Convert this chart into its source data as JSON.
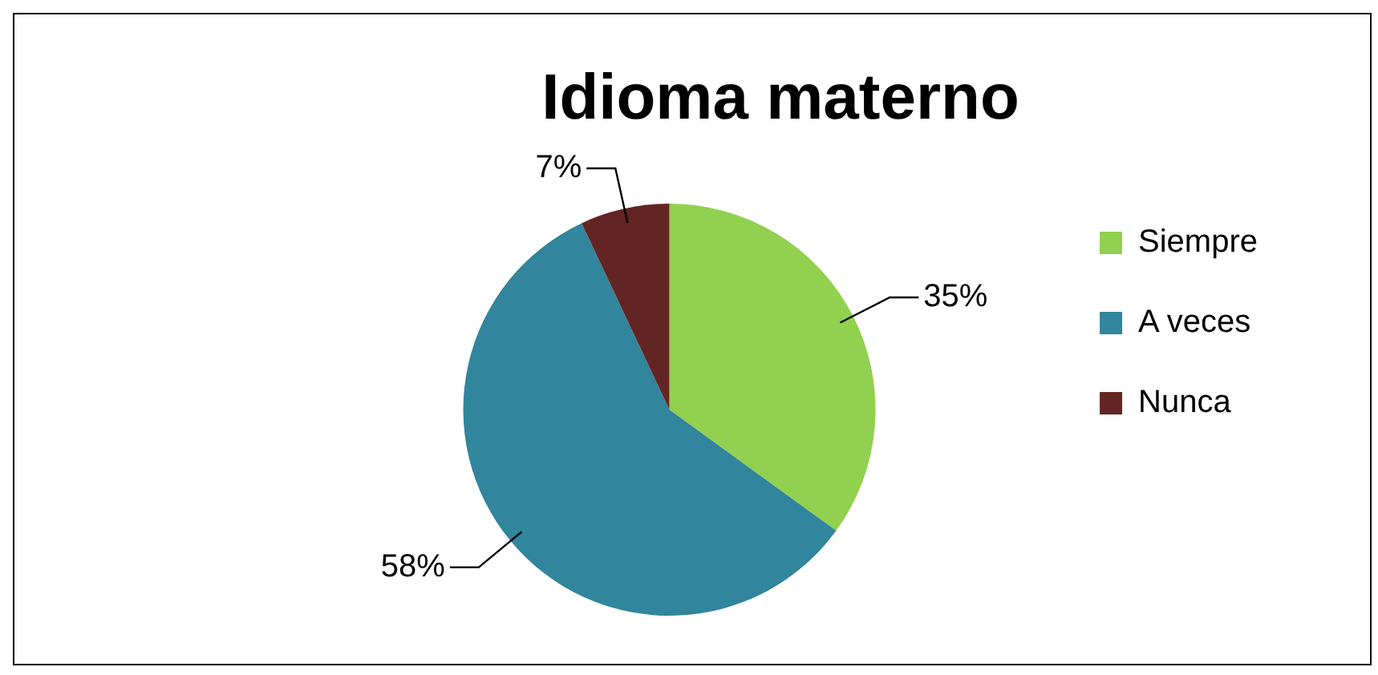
{
  "chart_data": {
    "type": "pie",
    "title": "Idioma materno",
    "categories": [
      "Siempre",
      "A veces",
      "Nunca"
    ],
    "values": [
      35,
      58,
      7
    ],
    "colors": [
      "#92d050",
      "#31859c",
      "#632523"
    ],
    "value_labels": [
      "35%",
      "58%",
      "7%"
    ],
    "legend": "right"
  }
}
